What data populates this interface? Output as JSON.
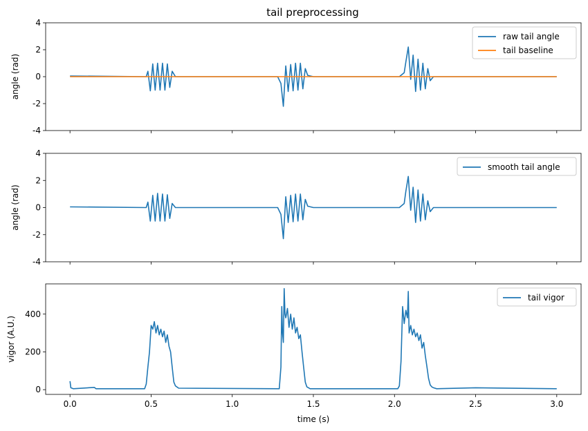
{
  "figure": {
    "title": "tail preprocessing"
  },
  "chart_data": [
    {
      "type": "line",
      "title": "tail preprocessing",
      "xlabel": "",
      "ylabel": "angle (rad)",
      "xlim": [
        -0.15,
        3.15
      ],
      "ylim": [
        -4,
        4
      ],
      "yticks": [
        -4,
        -2,
        0,
        2,
        4
      ],
      "xticks": [
        0.0,
        0.5,
        1.0,
        1.5,
        2.0,
        2.5,
        3.0
      ],
      "show_xtick_labels": false,
      "legend": "top-right",
      "series": [
        {
          "name": "raw tail angle",
          "color": "#1f77b4",
          "x": [
            0.0,
            0.47,
            0.48,
            0.495,
            0.51,
            0.525,
            0.54,
            0.555,
            0.57,
            0.585,
            0.6,
            0.615,
            0.63,
            0.65,
            1.28,
            1.3,
            1.315,
            1.33,
            1.345,
            1.36,
            1.375,
            1.39,
            1.405,
            1.42,
            1.435,
            1.45,
            1.465,
            1.5,
            2.03,
            2.06,
            2.07,
            2.085,
            2.1,
            2.115,
            2.13,
            2.145,
            2.16,
            2.175,
            2.19,
            2.205,
            2.22,
            2.24,
            3.0
          ],
          "y": [
            0.05,
            0.0,
            0.4,
            -1.05,
            0.95,
            -1.0,
            1.0,
            -1.0,
            1.0,
            -1.0,
            0.95,
            -0.8,
            0.4,
            0.0,
            0.0,
            -0.5,
            -2.2,
            0.8,
            -1.1,
            0.9,
            -1.05,
            1.0,
            -1.0,
            1.0,
            -0.9,
            0.6,
            0.1,
            0.0,
            0.0,
            0.3,
            1.1,
            2.2,
            -0.2,
            1.6,
            -1.1,
            1.3,
            -1.0,
            1.0,
            -0.9,
            0.6,
            -0.3,
            0.0,
            0.0
          ]
        },
        {
          "name": "tail baseline",
          "color": "#ff7f0e",
          "x": [
            0.0,
            3.0
          ],
          "y": [
            0.0,
            0.0
          ]
        }
      ]
    },
    {
      "type": "line",
      "xlabel": "",
      "ylabel": "angle (rad)",
      "xlim": [
        -0.15,
        3.15
      ],
      "ylim": [
        -4,
        4
      ],
      "yticks": [
        -4,
        -2,
        0,
        2,
        4
      ],
      "xticks": [
        0.0,
        0.5,
        1.0,
        1.5,
        2.0,
        2.5,
        3.0
      ],
      "show_xtick_labels": false,
      "legend": "top-right",
      "series": [
        {
          "name": "smooth tail angle",
          "color": "#1f77b4",
          "x": [
            0.0,
            0.47,
            0.48,
            0.495,
            0.51,
            0.525,
            0.54,
            0.555,
            0.57,
            0.585,
            0.6,
            0.615,
            0.63,
            0.65,
            1.28,
            1.3,
            1.315,
            1.33,
            1.345,
            1.36,
            1.375,
            1.39,
            1.405,
            1.42,
            1.435,
            1.45,
            1.465,
            1.5,
            2.03,
            2.06,
            2.07,
            2.085,
            2.1,
            2.115,
            2.13,
            2.145,
            2.16,
            2.175,
            2.19,
            2.205,
            2.22,
            2.24,
            3.0
          ],
          "y": [
            0.05,
            0.0,
            0.4,
            -1.0,
            0.9,
            -1.0,
            1.05,
            -1.0,
            1.0,
            -1.0,
            0.95,
            -0.8,
            0.3,
            0.0,
            0.0,
            -0.5,
            -2.3,
            0.8,
            -1.1,
            0.9,
            -1.05,
            1.0,
            -1.0,
            1.0,
            -0.9,
            0.6,
            0.1,
            0.0,
            0.0,
            0.3,
            1.2,
            2.3,
            -0.2,
            1.5,
            -1.1,
            1.3,
            -1.0,
            1.0,
            -0.9,
            0.5,
            -0.3,
            0.0,
            0.0
          ]
        }
      ]
    },
    {
      "type": "line",
      "xlabel": "time (s)",
      "ylabel": "vigor (A.U.)",
      "xlim": [
        -0.15,
        3.15
      ],
      "ylim": [
        -25,
        560
      ],
      "yticks": [
        0,
        200,
        400
      ],
      "xticks": [
        0.0,
        0.5,
        1.0,
        1.5,
        2.0,
        2.5,
        3.0
      ],
      "xtick_labels": [
        "0.0",
        "0.5",
        "1.0",
        "1.5",
        "2.0",
        "2.5",
        "3.0"
      ],
      "show_xtick_labels": true,
      "legend": "top-right",
      "series": [
        {
          "name": "tail vigor",
          "color": "#1f77b4",
          "x": [
            0.0,
            0.005,
            0.02,
            0.15,
            0.16,
            0.46,
            0.47,
            0.48,
            0.49,
            0.5,
            0.51,
            0.52,
            0.53,
            0.54,
            0.55,
            0.56,
            0.57,
            0.58,
            0.59,
            0.6,
            0.61,
            0.62,
            0.63,
            0.64,
            0.65,
            0.67,
            1.29,
            1.3,
            1.305,
            1.31,
            1.315,
            1.32,
            1.325,
            1.33,
            1.34,
            1.35,
            1.36,
            1.37,
            1.38,
            1.39,
            1.4,
            1.41,
            1.42,
            1.43,
            1.44,
            1.45,
            1.46,
            1.48,
            2.02,
            2.03,
            2.04,
            2.05,
            2.06,
            2.07,
            2.08,
            2.085,
            2.09,
            2.1,
            2.11,
            2.12,
            2.13,
            2.14,
            2.15,
            2.16,
            2.17,
            2.18,
            2.19,
            2.2,
            2.21,
            2.22,
            2.23,
            2.24,
            2.26,
            2.5,
            3.0
          ],
          "y": [
            45,
            10,
            5,
            12,
            5,
            5,
            30,
            120,
            200,
            340,
            320,
            360,
            300,
            340,
            290,
            320,
            280,
            310,
            250,
            290,
            230,
            200,
            120,
            40,
            20,
            8,
            5,
            120,
            440,
            300,
            250,
            535,
            400,
            380,
            430,
            330,
            400,
            320,
            380,
            300,
            330,
            270,
            290,
            200,
            120,
            40,
            15,
            5,
            5,
            20,
            150,
            440,
            350,
            420,
            380,
            520,
            300,
            340,
            290,
            320,
            280,
            300,
            260,
            290,
            220,
            250,
            180,
            120,
            60,
            25,
            15,
            10,
            5,
            10,
            5
          ]
        }
      ]
    }
  ]
}
